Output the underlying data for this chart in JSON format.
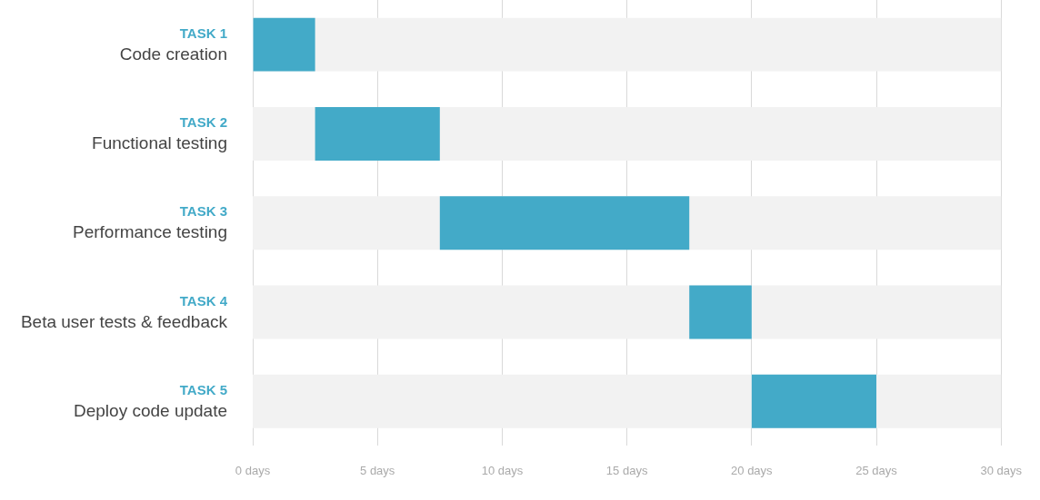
{
  "chart_data": {
    "type": "bar",
    "orientation": "horizontal",
    "categories": [
      "TASK 1\nCode creation",
      "TASK 2\nFunctional testing",
      "TASK 3\nPerformance testing",
      "TASK 4\nBeta user tests & feedback",
      "TASK 5\nDeploy code update"
    ],
    "base": [
      0,
      2.5,
      7.5,
      17.5,
      20
    ],
    "values": [
      2.5,
      5,
      10,
      2.5,
      5
    ],
    "color": "#43aac8",
    "xlim": [
      0,
      30
    ],
    "xticks": [
      {
        "value": 0,
        "label": "0 days"
      },
      {
        "value": 5,
        "label": "5 days"
      },
      {
        "value": 10,
        "label": "10 days"
      },
      {
        "value": 15,
        "label": "15 days"
      },
      {
        "value": 20,
        "label": "20 days"
      },
      {
        "value": 25,
        "label": "25 days"
      },
      {
        "value": 30,
        "label": "30 days"
      }
    ],
    "grid": "x",
    "legend": false
  }
}
